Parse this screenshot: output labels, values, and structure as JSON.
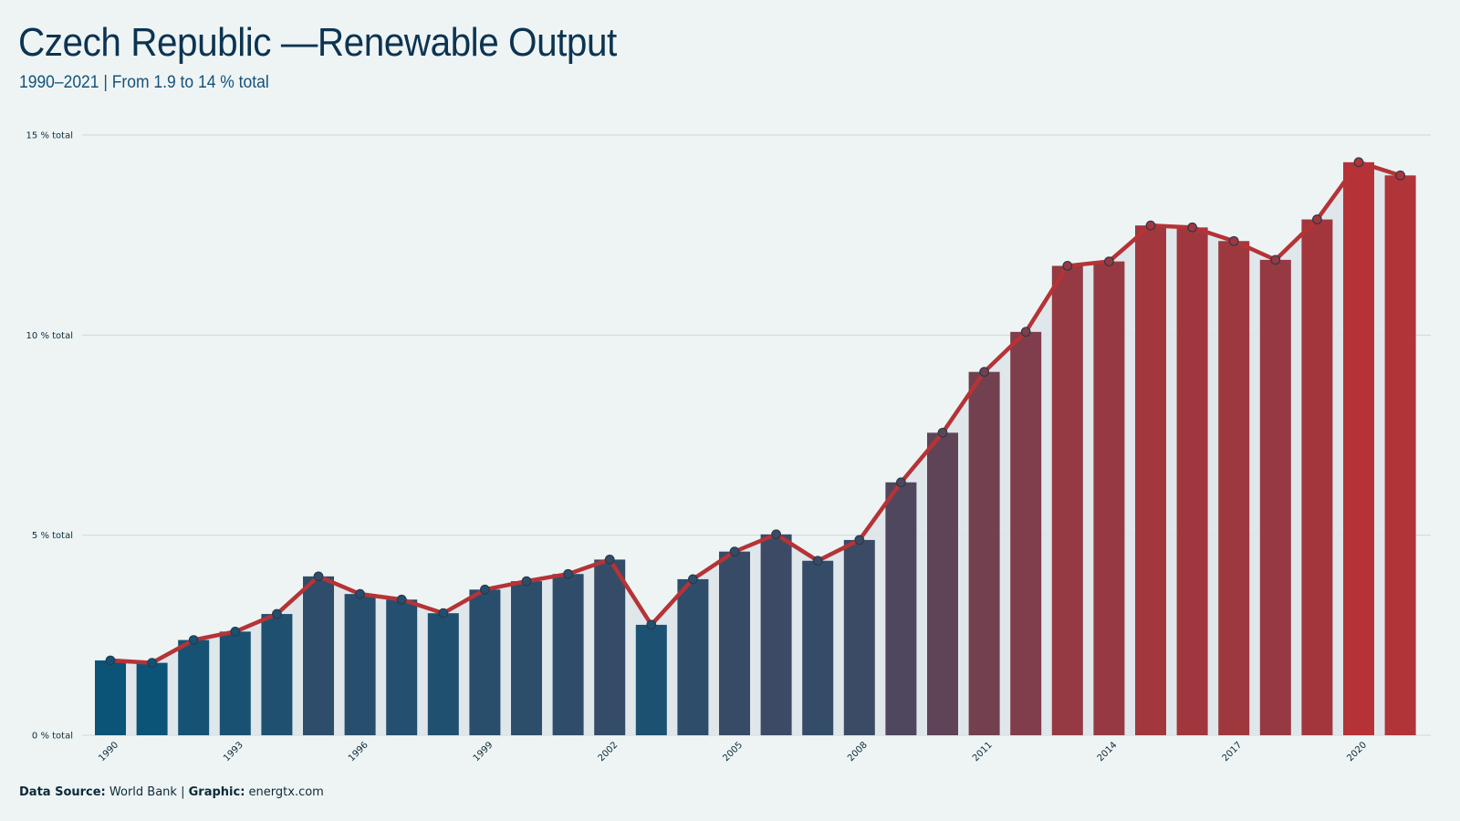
{
  "title": "Czech Republic —Renewable Output",
  "subtitle": "1990–2021 | From 1.9 to 14 % total",
  "footer": {
    "source_label": "Data Source:",
    "source_value": "World Bank",
    "separator": "|",
    "graphic_label": "Graphic:",
    "graphic_value": "energtx.com"
  },
  "colors": {
    "low": "#0b5478",
    "high": "#b53336",
    "line": "#b53336",
    "grid": "#cdd6d9",
    "background": "#eef4f4",
    "band": "#dde5ea"
  },
  "chart_data": {
    "type": "bar",
    "title": "Czech Republic —Renewable Output",
    "subtitle": "1990–2021 | From 1.9 to 14 % total",
    "categories": [
      "1990",
      "1991",
      "1992",
      "1993",
      "1994",
      "1995",
      "1996",
      "1997",
      "1998",
      "1999",
      "2000",
      "2001",
      "2002",
      "2003",
      "2004",
      "2005",
      "2006",
      "2007",
      "2008",
      "2009",
      "2010",
      "2011",
      "2012",
      "2013",
      "2014",
      "2015",
      "2016",
      "2017",
      "2018",
      "2019",
      "2020",
      "2021"
    ],
    "x_tick_labels": [
      "1990",
      "1993",
      "1996",
      "1999",
      "2002",
      "2005",
      "2008",
      "2011",
      "2014",
      "2017",
      "2020"
    ],
    "series": [
      {
        "type": "bar+line",
        "values": [
          1.87,
          1.81,
          2.38,
          2.59,
          3.03,
          3.97,
          3.53,
          3.39,
          3.05,
          3.64,
          3.85,
          4.03,
          4.39,
          2.76,
          3.9,
          4.59,
          5.02,
          4.36,
          4.88,
          6.32,
          7.56,
          9.08,
          10.08,
          11.73,
          11.84,
          12.74,
          12.69,
          12.35,
          11.88,
          12.89,
          14.32,
          13.99
        ]
      }
    ],
    "ylim": [
      0,
      15
    ],
    "y_ticks": [
      0,
      5,
      10,
      15
    ],
    "y_tick_labels": [
      "0 % total",
      "5 % total",
      "10 % total",
      "15 % total"
    ],
    "xlabel": "",
    "ylabel": "",
    "grid": true,
    "legend": "none"
  }
}
